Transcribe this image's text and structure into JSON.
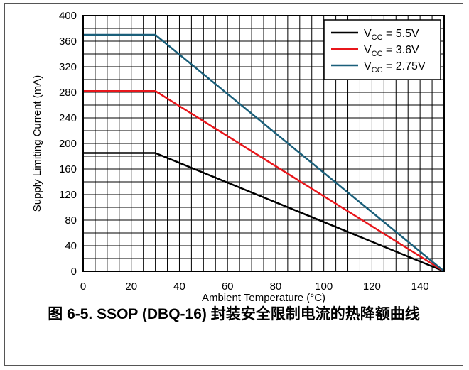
{
  "caption": "图 6-5. SSOP (DBQ-16) 封装安全限制电流的热降额曲线",
  "chart_data": {
    "type": "line",
    "xlabel": "Ambient Temperature (°C)",
    "ylabel": "Supply Limiting Current (mA)",
    "xlim": [
      0,
      150
    ],
    "ylim": [
      0,
      400
    ],
    "xticks": [
      0,
      20,
      40,
      60,
      80,
      100,
      120,
      140
    ],
    "yticks": [
      0,
      40,
      80,
      120,
      160,
      200,
      240,
      280,
      320,
      360,
      400
    ],
    "grid": true,
    "grid_x_step": 5,
    "grid_y_step": 20,
    "legend_position": "top-right",
    "series": [
      {
        "name": "V_CC = 5.5V",
        "legend_main": "V",
        "legend_sub": "CC",
        "legend_rest": " = 5.5V",
        "color": "#000000",
        "x": [
          0,
          30,
          150
        ],
        "y": [
          185,
          185,
          0
        ]
      },
      {
        "name": "V_CC = 3.6V",
        "legend_main": "V",
        "legend_sub": "CC",
        "legend_rest": " = 3.6V",
        "color": "#e8161b",
        "x": [
          0,
          30,
          150
        ],
        "y": [
          282,
          282,
          0
        ]
      },
      {
        "name": "V_CC = 2.75V",
        "legend_main": "V",
        "legend_sub": "CC",
        "legend_rest": " = 2.75V",
        "color": "#1a5f7a",
        "x": [
          0,
          30,
          150
        ],
        "y": [
          370,
          370,
          0
        ]
      }
    ]
  }
}
